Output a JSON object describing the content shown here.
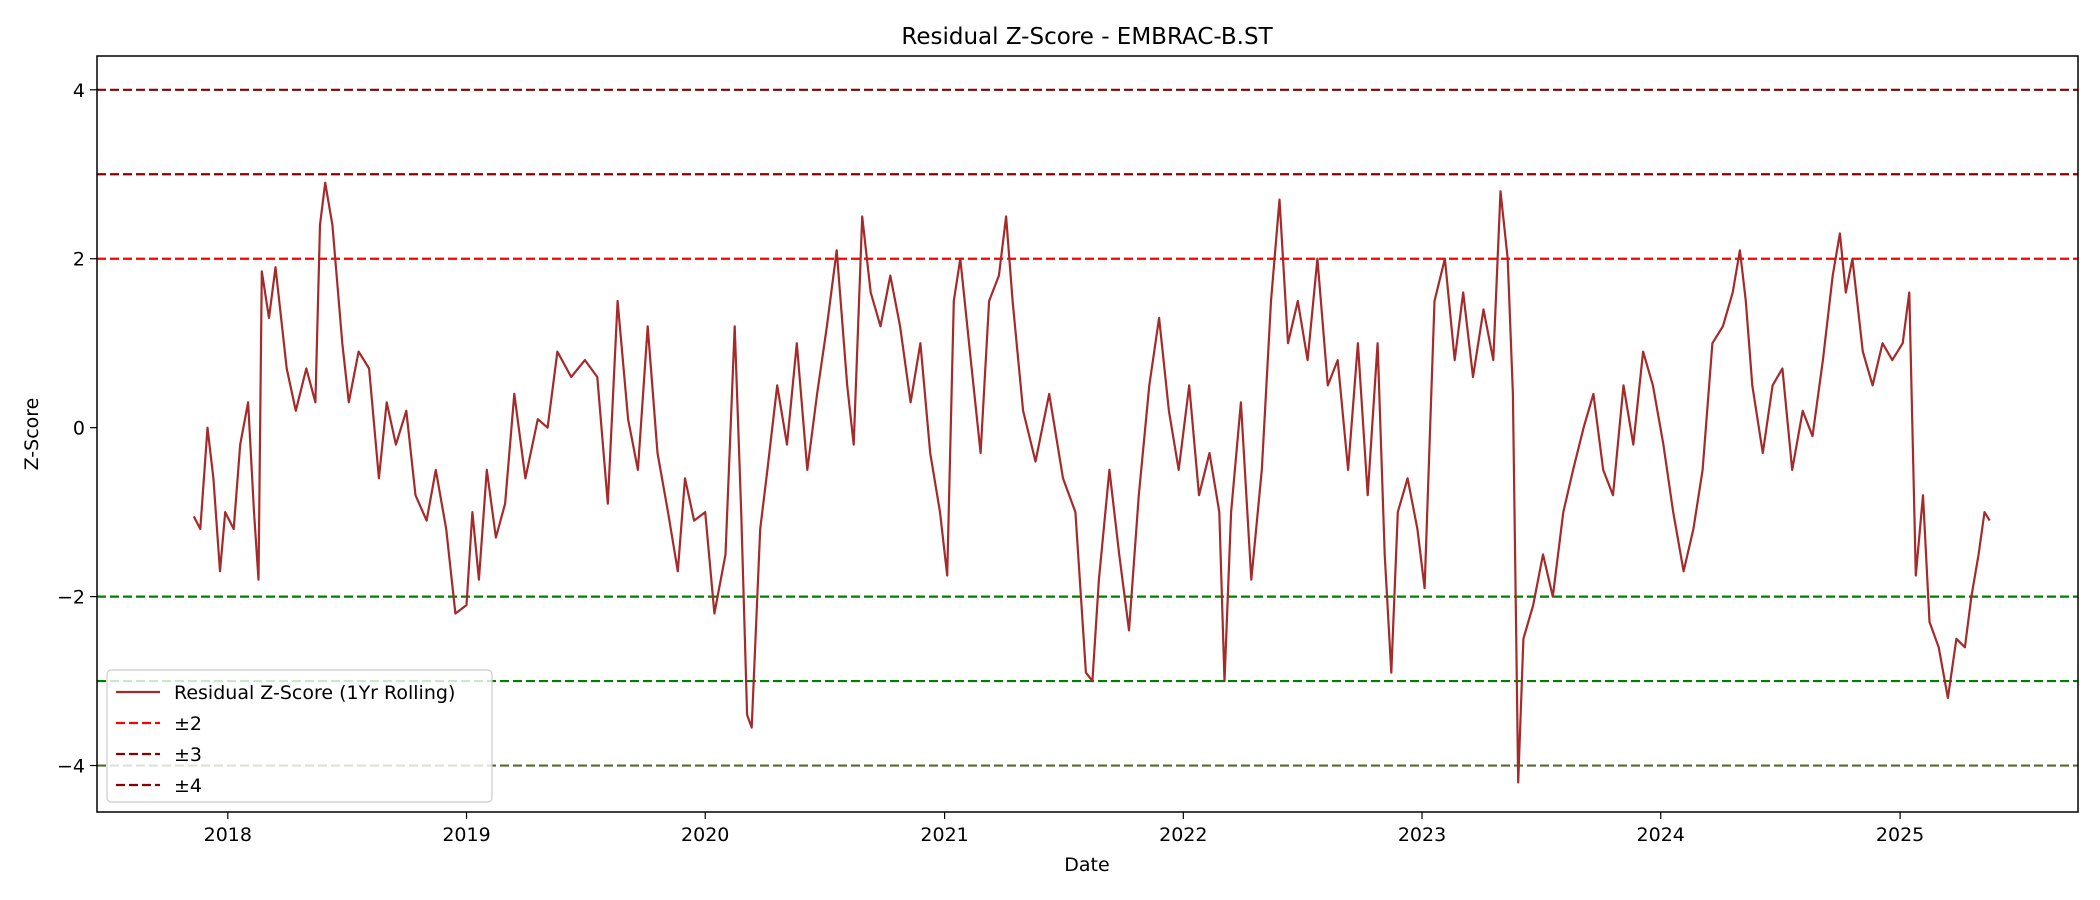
{
  "chart_data": {
    "type": "line",
    "title": "Residual Z-Score - EMBRAC-B.ST",
    "xlabel": "Date",
    "ylabel": "Z-Score",
    "xlim": [
      "2017-06-15",
      "2025-09-30"
    ],
    "ylim": [
      -4.55,
      4.4
    ],
    "x_ticks": [
      "2018-01-01",
      "2019-01-01",
      "2020-01-01",
      "2021-01-01",
      "2022-01-01",
      "2023-01-01",
      "2024-01-01",
      "2025-01-01"
    ],
    "x_tick_labels": [
      "2018",
      "2019",
      "2020",
      "2021",
      "2022",
      "2023",
      "2024",
      "2025"
    ],
    "y_ticks": [
      -4,
      -2,
      0,
      2,
      4
    ],
    "y_tick_labels": [
      "−4",
      "−2",
      "0",
      "2",
      "4"
    ],
    "grid": false,
    "legend_position": "lower-left",
    "series": [
      {
        "name": "Residual Z-Score (1Yr Rolling)",
        "color": "#a52a2a",
        "points": [
          [
            "2017-11-10",
            -1.05
          ],
          [
            "2017-11-20",
            -1.2
          ],
          [
            "2017-12-01",
            0.0
          ],
          [
            "2017-12-10",
            -0.6
          ],
          [
            "2017-12-20",
            -1.7
          ],
          [
            "2017-12-28",
            -1.0
          ],
          [
            "2018-01-10",
            -1.2
          ],
          [
            "2018-01-20",
            -0.2
          ],
          [
            "2018-02-01",
            0.3
          ],
          [
            "2018-02-10",
            -1.0
          ],
          [
            "2018-02-17",
            -1.8
          ],
          [
            "2018-02-22",
            1.85
          ],
          [
            "2018-03-05",
            1.3
          ],
          [
            "2018-03-15",
            1.9
          ],
          [
            "2018-04-01",
            0.7
          ],
          [
            "2018-04-15",
            0.2
          ],
          [
            "2018-05-01",
            0.7
          ],
          [
            "2018-05-15",
            0.3
          ],
          [
            "2018-05-22",
            2.4
          ],
          [
            "2018-05-30",
            2.9
          ],
          [
            "2018-06-10",
            2.4
          ],
          [
            "2018-06-25",
            1.0
          ],
          [
            "2018-07-05",
            0.3
          ],
          [
            "2018-07-20",
            0.9
          ],
          [
            "2018-08-05",
            0.7
          ],
          [
            "2018-08-20",
            -0.6
          ],
          [
            "2018-09-01",
            0.3
          ],
          [
            "2018-09-15",
            -0.2
          ],
          [
            "2018-10-01",
            0.2
          ],
          [
            "2018-10-15",
            -0.8
          ],
          [
            "2018-11-01",
            -1.1
          ],
          [
            "2018-11-15",
            -0.5
          ],
          [
            "2018-12-01",
            -1.2
          ],
          [
            "2018-12-15",
            -2.2
          ],
          [
            "2019-01-01",
            -2.1
          ],
          [
            "2019-01-10",
            -1.0
          ],
          [
            "2019-01-20",
            -1.8
          ],
          [
            "2019-02-01",
            -0.5
          ],
          [
            "2019-02-15",
            -1.3
          ],
          [
            "2019-03-01",
            -0.9
          ],
          [
            "2019-03-15",
            0.4
          ],
          [
            "2019-04-01",
            -0.6
          ],
          [
            "2019-04-20",
            0.1
          ],
          [
            "2019-05-05",
            0.0
          ],
          [
            "2019-05-20",
            0.9
          ],
          [
            "2019-06-10",
            0.6
          ],
          [
            "2019-07-01",
            0.8
          ],
          [
            "2019-07-20",
            0.6
          ],
          [
            "2019-08-05",
            -0.9
          ],
          [
            "2019-08-20",
            1.5
          ],
          [
            "2019-09-05",
            0.1
          ],
          [
            "2019-09-20",
            -0.5
          ],
          [
            "2019-10-05",
            1.2
          ],
          [
            "2019-10-20",
            -0.3
          ],
          [
            "2019-11-05",
            -1.0
          ],
          [
            "2019-11-20",
            -1.7
          ],
          [
            "2019-12-01",
            -0.6
          ],
          [
            "2019-12-15",
            -1.1
          ],
          [
            "2020-01-01",
            -1.0
          ],
          [
            "2020-01-15",
            -2.2
          ],
          [
            "2020-02-01",
            -1.5
          ],
          [
            "2020-02-15",
            1.2
          ],
          [
            "2020-02-25",
            -1.0
          ],
          [
            "2020-03-05",
            -3.4
          ],
          [
            "2020-03-12",
            -3.55
          ],
          [
            "2020-03-25",
            -1.2
          ],
          [
            "2020-04-05",
            -0.5
          ],
          [
            "2020-04-20",
            0.5
          ],
          [
            "2020-05-05",
            -0.2
          ],
          [
            "2020-05-20",
            1.0
          ],
          [
            "2020-06-05",
            -0.5
          ],
          [
            "2020-06-20",
            0.4
          ],
          [
            "2020-07-05",
            1.2
          ],
          [
            "2020-07-20",
            2.1
          ],
          [
            "2020-08-05",
            0.5
          ],
          [
            "2020-08-15",
            -0.2
          ],
          [
            "2020-08-28",
            2.5
          ],
          [
            "2020-09-10",
            1.6
          ],
          [
            "2020-09-25",
            1.2
          ],
          [
            "2020-10-10",
            1.8
          ],
          [
            "2020-10-25",
            1.2
          ],
          [
            "2020-11-10",
            0.3
          ],
          [
            "2020-11-25",
            1.0
          ],
          [
            "2020-12-10",
            -0.3
          ],
          [
            "2020-12-25",
            -1.0
          ],
          [
            "2021-01-05",
            -1.75
          ],
          [
            "2021-01-15",
            1.5
          ],
          [
            "2021-01-25",
            2.0
          ],
          [
            "2021-02-10",
            0.8
          ],
          [
            "2021-02-25",
            -0.3
          ],
          [
            "2021-03-10",
            1.5
          ],
          [
            "2021-03-25",
            1.8
          ],
          [
            "2021-04-05",
            2.5
          ],
          [
            "2021-04-15",
            1.5
          ],
          [
            "2021-05-01",
            0.2
          ],
          [
            "2021-05-20",
            -0.4
          ],
          [
            "2021-06-10",
            0.4
          ],
          [
            "2021-07-01",
            -0.6
          ],
          [
            "2021-07-20",
            -1.0
          ],
          [
            "2021-08-05",
            -2.9
          ],
          [
            "2021-08-15",
            -3.0
          ],
          [
            "2021-08-25",
            -1.8
          ],
          [
            "2021-09-10",
            -0.5
          ],
          [
            "2021-09-25",
            -1.5
          ],
          [
            "2021-10-10",
            -2.4
          ],
          [
            "2021-10-25",
            -0.8
          ],
          [
            "2021-11-10",
            0.5
          ],
          [
            "2021-11-25",
            1.3
          ],
          [
            "2021-12-10",
            0.2
          ],
          [
            "2021-12-25",
            -0.5
          ],
          [
            "2022-01-10",
            0.5
          ],
          [
            "2022-01-25",
            -0.8
          ],
          [
            "2022-02-10",
            -0.3
          ],
          [
            "2022-02-25",
            -1.0
          ],
          [
            "2022-03-05",
            -3.0
          ],
          [
            "2022-03-15",
            -1.0
          ],
          [
            "2022-03-30",
            0.3
          ],
          [
            "2022-04-15",
            -1.8
          ],
          [
            "2022-05-01",
            -0.5
          ],
          [
            "2022-05-15",
            1.5
          ],
          [
            "2022-05-28",
            2.7
          ],
          [
            "2022-06-10",
            1.0
          ],
          [
            "2022-06-25",
            1.5
          ],
          [
            "2022-07-10",
            0.8
          ],
          [
            "2022-07-25",
            2.0
          ],
          [
            "2022-08-10",
            0.5
          ],
          [
            "2022-08-25",
            0.8
          ],
          [
            "2022-09-10",
            -0.5
          ],
          [
            "2022-09-25",
            1.0
          ],
          [
            "2022-10-10",
            -0.8
          ],
          [
            "2022-10-25",
            1.0
          ],
          [
            "2022-11-05",
            -1.5
          ],
          [
            "2022-11-15",
            -2.9
          ],
          [
            "2022-11-25",
            -1.0
          ],
          [
            "2022-12-10",
            -0.6
          ],
          [
            "2022-12-25",
            -1.2
          ],
          [
            "2023-01-05",
            -1.9
          ],
          [
            "2023-01-20",
            1.5
          ],
          [
            "2023-02-05",
            2.0
          ],
          [
            "2023-02-20",
            0.8
          ],
          [
            "2023-03-05",
            1.6
          ],
          [
            "2023-03-20",
            0.6
          ],
          [
            "2023-04-05",
            1.4
          ],
          [
            "2023-04-20",
            0.8
          ],
          [
            "2023-05-01",
            2.8
          ],
          [
            "2023-05-12",
            2.0
          ],
          [
            "2023-05-20",
            0.4
          ],
          [
            "2023-05-28",
            -4.2
          ],
          [
            "2023-06-05",
            -2.5
          ],
          [
            "2023-06-20",
            -2.1
          ],
          [
            "2023-07-05",
            -1.5
          ],
          [
            "2023-07-20",
            -2.0
          ],
          [
            "2023-08-05",
            -1.0
          ],
          [
            "2023-08-20",
            -0.5
          ],
          [
            "2023-09-05",
            0.0
          ],
          [
            "2023-09-20",
            0.4
          ],
          [
            "2023-10-05",
            -0.5
          ],
          [
            "2023-10-20",
            -0.8
          ],
          [
            "2023-11-05",
            0.5
          ],
          [
            "2023-11-20",
            -0.2
          ],
          [
            "2023-12-05",
            0.9
          ],
          [
            "2023-12-20",
            0.5
          ],
          [
            "2024-01-05",
            -0.2
          ],
          [
            "2024-01-20",
            -1.0
          ],
          [
            "2024-02-05",
            -1.7
          ],
          [
            "2024-02-20",
            -1.2
          ],
          [
            "2024-03-05",
            -0.5
          ],
          [
            "2024-03-20",
            1.0
          ],
          [
            "2024-04-05",
            1.2
          ],
          [
            "2024-04-20",
            1.6
          ],
          [
            "2024-05-01",
            2.1
          ],
          [
            "2024-05-10",
            1.5
          ],
          [
            "2024-05-20",
            0.5
          ],
          [
            "2024-06-05",
            -0.3
          ],
          [
            "2024-06-20",
            0.5
          ],
          [
            "2024-07-05",
            0.7
          ],
          [
            "2024-07-20",
            -0.5
          ],
          [
            "2024-08-05",
            0.2
          ],
          [
            "2024-08-20",
            -0.1
          ],
          [
            "2024-09-05",
            0.8
          ],
          [
            "2024-09-20",
            1.8
          ],
          [
            "2024-10-01",
            2.3
          ],
          [
            "2024-10-10",
            1.6
          ],
          [
            "2024-10-20",
            2.0
          ],
          [
            "2024-11-05",
            0.9
          ],
          [
            "2024-11-20",
            0.5
          ],
          [
            "2024-12-05",
            1.0
          ],
          [
            "2024-12-20",
            0.8
          ],
          [
            "2025-01-05",
            1.0
          ],
          [
            "2025-01-15",
            1.6
          ],
          [
            "2025-01-25",
            -1.75
          ],
          [
            "2025-02-05",
            -0.8
          ],
          [
            "2025-02-15",
            -2.3
          ],
          [
            "2025-03-01",
            -2.6
          ],
          [
            "2025-03-15",
            -3.2
          ],
          [
            "2025-03-28",
            -2.5
          ],
          [
            "2025-04-10",
            -2.6
          ],
          [
            "2025-04-20",
            -2.0
          ],
          [
            "2025-05-01",
            -1.5
          ],
          [
            "2025-05-10",
            -1.0
          ],
          [
            "2025-05-18",
            -1.1
          ]
        ]
      }
    ],
    "reference_lines": [
      {
        "y": 2,
        "color": "#ff0000"
      },
      {
        "y": -2,
        "color": "#008000"
      },
      {
        "y": 3,
        "color": "#8b0000"
      },
      {
        "y": -3,
        "color": "#008000"
      },
      {
        "y": 4,
        "color": "#8b0000"
      },
      {
        "y": -4,
        "color": "#556b2f"
      }
    ],
    "legend": [
      {
        "label": "Residual Z-Score (1Yr Rolling)",
        "color": "#a52a2a",
        "style": "solid"
      },
      {
        "label": "±2",
        "color": "#ff0000",
        "style": "dashed"
      },
      {
        "label": "±3",
        "color": "#8b0000",
        "style": "dashed"
      },
      {
        "label": "±4",
        "color": "#8b0000",
        "style": "dashed"
      }
    ]
  }
}
